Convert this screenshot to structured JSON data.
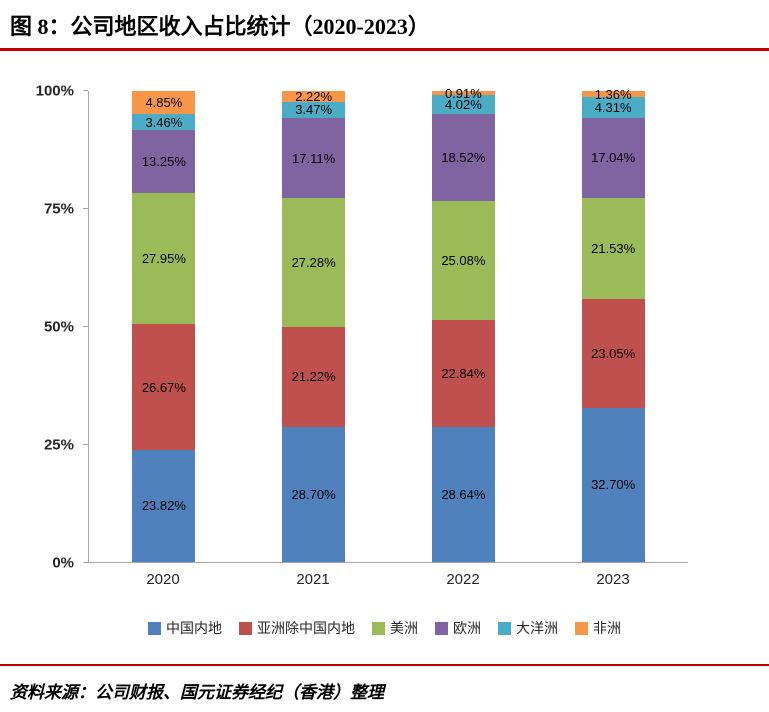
{
  "title": "图 8：公司地区收入占比统计（2020-2023）",
  "source": "资料来源：公司财报、国元证券经纪（香港）整理",
  "accent_color": "#C00000",
  "axis_color": "#A6A6A6",
  "chart_data": {
    "type": "bar",
    "stacked": true,
    "percent_stacked": true,
    "title": "公司地区收入占比统计（2020-2023）",
    "categories": [
      "2020",
      "2021",
      "2022",
      "2023"
    ],
    "series": [
      {
        "name": "中国内地",
        "color": "#4F81BD",
        "values": [
          23.82,
          28.7,
          28.64,
          32.7
        ]
      },
      {
        "name": "亚洲除中国内地",
        "color": "#C0504D",
        "values": [
          26.67,
          21.22,
          22.84,
          23.05
        ]
      },
      {
        "name": "美洲",
        "color": "#9BBB59",
        "values": [
          27.95,
          27.28,
          25.08,
          21.53
        ]
      },
      {
        "name": "欧洲",
        "color": "#8064A2",
        "values": [
          13.25,
          17.11,
          18.52,
          17.04
        ]
      },
      {
        "name": "大洋洲",
        "color": "#4BACC6",
        "values": [
          3.46,
          3.47,
          4.02,
          4.31
        ]
      },
      {
        "name": "非洲",
        "color": "#F79646",
        "values": [
          4.85,
          2.22,
          0.91,
          1.36
        ]
      }
    ],
    "xlabel": "",
    "ylabel": "",
    "ylim": [
      0,
      100
    ],
    "yticks": [
      "0%",
      "25%",
      "50%",
      "75%",
      "100%"
    ],
    "grid": false,
    "legend_position": "bottom",
    "data_labels": true,
    "value_format": "0.00%"
  }
}
